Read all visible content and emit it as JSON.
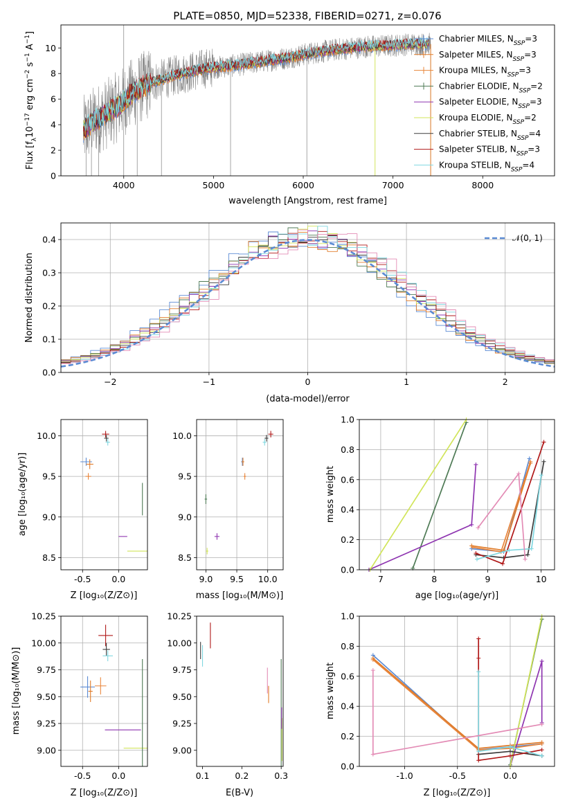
{
  "chart_data": [
    {
      "id": "spectrum",
      "type": "line",
      "title": "PLATE=0850, MJD=52338, FIBERID=0271, z=0.076",
      "xlabel": "wavelength [Angstrom, rest frame]",
      "ylabel": "Flux [fλ10⁻¹⁷ erg cm⁻² s⁻¹ A⁻¹]",
      "xlim": [
        3300,
        8800
      ],
      "ylim": [
        0,
        11.8
      ],
      "xticks": [
        4000,
        5000,
        6000,
        7000,
        8000
      ],
      "yticks": [
        0,
        2,
        4,
        6,
        8,
        10
      ],
      "grid": false,
      "legend_position": "top-right",
      "data_gray": "#808080",
      "continuum": {
        "x": [
          3550,
          3650,
          3800,
          3950,
          4100,
          4300,
          4600,
          4900,
          5200,
          5500,
          5800,
          6100,
          6400,
          6700,
          7000,
          7200,
          7400
        ],
        "y": [
          3.5,
          4.2,
          4.8,
          5.5,
          6.5,
          7.3,
          7.9,
          8.4,
          8.6,
          8.9,
          9.2,
          9.6,
          9.9,
          10.1,
          10.2,
          10.3,
          10.3
        ]
      },
      "series": [
        {
          "name": "Chabrier MILES, N",
          "sub": "SSP",
          "sup": "=3",
          "color": "#5b8bd4",
          "style": "plus"
        },
        {
          "name": "Salpeter MILES, N",
          "sub": "SSP",
          "sup": "=3",
          "color": "#e07b28",
          "style": "plus"
        },
        {
          "name": "Kroupa MILES, N",
          "sub": "SSP",
          "sup": "=3",
          "color": "#e8843a",
          "style": "plus"
        },
        {
          "name": "Chabrier ELODIE, N",
          "sub": "SSP",
          "sup": "=2",
          "color": "#4e7a55",
          "style": "plus"
        },
        {
          "name": "Salpeter ELODIE, N",
          "sub": "SSP",
          "sup": "=3",
          "color": "#8e34b0",
          "style": "line"
        },
        {
          "name": "Kroupa ELODIE, N",
          "sub": "SSP",
          "sup": "=2",
          "color": "#d1e55a",
          "style": "line"
        },
        {
          "name": "Chabrier STELIB, N",
          "sub": "SSP",
          "sup": "=4",
          "color": "#3c3c3c",
          "style": "line"
        },
        {
          "name": "Salpeter STELIB, N",
          "sub": "SSP",
          "sup": "=3",
          "color": "#b01818",
          "style": "line"
        },
        {
          "name": "Kroupa STELIB, N",
          "sub": "SSP",
          "sup": "=4",
          "color": "#7fd7e0",
          "style": "line"
        }
      ]
    },
    {
      "id": "residuals",
      "type": "bar",
      "xlabel": "(data-model)/error",
      "ylabel": "Normed distribution",
      "xlim": [
        -2.5,
        2.5
      ],
      "ylim": [
        0,
        0.45
      ],
      "xticks": [
        -2,
        -1,
        0,
        1,
        2
      ],
      "yticks": [
        0.0,
        0.1,
        0.2,
        0.3,
        0.4
      ],
      "grid": true,
      "legend_position": "top-right",
      "reference_curve": {
        "name": "𝒩(0, 1)",
        "color": "#5b8bd4",
        "mean": 0,
        "sigma": 1
      },
      "bin_width": 0.1
    },
    {
      "id": "age-vs-z",
      "type": "scatter",
      "xlabel": "Z [log₁₀(Z/Z⊙)]",
      "ylabel": "age  [log₁₀(age/yr)]",
      "xlim": [
        -0.8,
        0.4
      ],
      "ylim": [
        8.35,
        10.2
      ],
      "xticks": [
        -0.5,
        0.0
      ],
      "yticks": [
        8.5,
        9.0,
        9.5,
        10.0
      ],
      "grid": true,
      "points": [
        {
          "series": "Chabrier MILES",
          "x": -0.45,
          "y": 9.68,
          "xerr": 0.08,
          "yerr": 0.05
        },
        {
          "series": "Salpeter MILES",
          "x": -0.4,
          "y": 9.65,
          "xerr": 0.05,
          "yerr": 0.06
        },
        {
          "series": "Kroupa MILES",
          "x": -0.42,
          "y": 9.5,
          "xerr": 0.04,
          "yerr": 0.04
        },
        {
          "series": "Salpeter STELIB",
          "x": -0.18,
          "y": 10.02,
          "xerr": 0.05,
          "yerr": 0.04
        },
        {
          "series": "Chabrier STELIB",
          "x": -0.17,
          "y": 9.97,
          "xerr": 0.03,
          "yerr": 0.04
        },
        {
          "series": "Kroupa STELIB",
          "x": -0.15,
          "y": 9.92,
          "xerr": 0.03,
          "yerr": 0.04
        },
        {
          "series": "Salpeter ELODIE",
          "x": 0.06,
          "y": 8.76,
          "xerr": 0.06,
          "yerr": 0.0
        },
        {
          "series": "Kroupa ELODIE",
          "x": 0.32,
          "y": 8.58,
          "xerr": 0.2,
          "yerr": 0.0
        },
        {
          "series": "Chabrier ELODIE",
          "x": 0.33,
          "y": 9.22,
          "xerr": 0.0,
          "yerr": 0.2
        }
      ]
    },
    {
      "id": "age-vs-mass",
      "type": "scatter",
      "xlabel": "mass [log₁₀(M/M⊙)]",
      "xlim": [
        8.85,
        10.25
      ],
      "ylim": [
        8.35,
        10.2
      ],
      "xticks": [
        9.0,
        9.5,
        10.0
      ],
      "yticks": [
        8.5,
        9.0,
        9.5,
        10.0
      ],
      "grid": true,
      "points": [
        {
          "series": "Chabrier MILES",
          "x": 9.59,
          "y": 9.68,
          "xerr": 0.02,
          "yerr": 0.05
        },
        {
          "series": "Salpeter MILES",
          "x": 9.6,
          "y": 9.68,
          "xerr": 0.02,
          "yerr": 0.05
        },
        {
          "series": "Kroupa MILES",
          "x": 9.63,
          "y": 9.5,
          "xerr": 0.02,
          "yerr": 0.04
        },
        {
          "series": "Salpeter STELIB",
          "x": 10.05,
          "y": 10.02,
          "xerr": 0.04,
          "yerr": 0.04
        },
        {
          "series": "Chabrier STELIB",
          "x": 9.98,
          "y": 9.97,
          "xerr": 0.03,
          "yerr": 0.04
        },
        {
          "series": "Kroupa STELIB",
          "x": 9.95,
          "y": 9.92,
          "xerr": 0.03,
          "yerr": 0.04
        },
        {
          "series": "Salpeter ELODIE",
          "x": 9.18,
          "y": 8.76,
          "xerr": 0.04,
          "yerr": 0.04
        },
        {
          "series": "Kroupa ELODIE",
          "x": 9.02,
          "y": 8.58,
          "xerr": 0.02,
          "yerr": 0.04
        },
        {
          "series": "Chabrier ELODIE",
          "x": 9.0,
          "y": 9.22,
          "xerr": 0.02,
          "yerr": 0.06
        }
      ]
    },
    {
      "id": "mass-weight-vs-age",
      "type": "line",
      "xlabel": "age  [log₁₀(age/yr)]",
      "ylabel": "mass weight",
      "xlim": [
        6.6,
        10.25
      ],
      "ylim": [
        0,
        1
      ],
      "xticks": [
        7,
        8,
        9,
        10
      ],
      "yticks": [
        0.0,
        0.2,
        0.4,
        0.6,
        0.8,
        1.0
      ],
      "grid": true,
      "series": [
        {
          "name": "Chabrier MILES",
          "x": [
            8.7,
            9.3,
            9.78
          ],
          "y": [
            0.14,
            0.12,
            0.74
          ]
        },
        {
          "name": "Salpeter MILES",
          "x": [
            8.7,
            9.3,
            9.8
          ],
          "y": [
            0.16,
            0.13,
            0.71
          ]
        },
        {
          "name": "Kroupa MILES",
          "x": [
            8.72,
            9.25,
            9.8
          ],
          "y": [
            0.15,
            0.12,
            0.72
          ]
        },
        {
          "name": "Chabrier ELODIE",
          "x": [
            7.6,
            8.6
          ],
          "y": [
            0.01,
            0.98
          ]
        },
        {
          "name": "Salpeter ELODIE",
          "x": [
            6.78,
            8.7,
            8.78
          ],
          "y": [
            0.0,
            0.3,
            0.7
          ]
        },
        {
          "name": "Kroupa ELODIE",
          "x": [
            6.8,
            8.6
          ],
          "y": [
            0.0,
            1.0
          ]
        },
        {
          "name": "Chabrier STELIB",
          "x": [
            8.78,
            9.3,
            9.75,
            10.05
          ],
          "y": [
            0.1,
            0.08,
            0.1,
            0.72
          ]
        },
        {
          "name": "Salpeter STELIB",
          "x": [
            8.78,
            9.28,
            10.05
          ],
          "y": [
            0.11,
            0.04,
            0.85
          ]
        },
        {
          "name": "Kroupa STELIB",
          "x": [
            8.8,
            9.4,
            9.82,
            10.0
          ],
          "y": [
            0.07,
            0.13,
            0.14,
            0.63
          ]
        },
        {
          "name": "Pink",
          "x": [
            8.82,
            9.58,
            9.7
          ],
          "y": [
            0.28,
            0.64,
            0.07
          ]
        }
      ]
    },
    {
      "id": "mass-vs-z",
      "type": "scatter",
      "xlabel": "Z [log₁₀(Z/Z⊙)]",
      "ylabel": "mass [log₁₀(M/M⊙)]",
      "xlim": [
        -0.8,
        0.4
      ],
      "ylim": [
        8.85,
        10.25
      ],
      "xticks": [
        -0.5,
        0.0
      ],
      "yticks": [
        9.0,
        9.25,
        9.5,
        9.75,
        10.0,
        10.25
      ],
      "grid": true,
      "points": [
        {
          "series": "Chabrier MILES",
          "x": -0.43,
          "y": 9.59,
          "xerr": 0.1,
          "yerr": 0.1
        },
        {
          "series": "Salpeter MILES",
          "x": -0.39,
          "y": 9.55,
          "xerr": 0.03,
          "yerr": 0.1
        },
        {
          "series": "Kroupa MILES",
          "x": -0.25,
          "y": 9.6,
          "xerr": 0.08,
          "yerr": 0.08
        },
        {
          "series": "Salpeter STELIB",
          "x": -0.18,
          "y": 10.07,
          "xerr": 0.1,
          "yerr": 0.1
        },
        {
          "series": "Chabrier STELIB",
          "x": -0.17,
          "y": 9.94,
          "xerr": 0.05,
          "yerr": 0.06
        },
        {
          "series": "Kroupa STELIB",
          "x": -0.15,
          "y": 9.88,
          "xerr": 0.07,
          "yerr": 0.05
        },
        {
          "series": "Salpeter ELODIE",
          "x": 0.06,
          "y": 9.19,
          "xerr": 0.25,
          "yerr": 0.0
        },
        {
          "series": "Kroupa ELODIE",
          "x": 0.32,
          "y": 9.02,
          "xerr": 0.25,
          "yerr": 0.0
        },
        {
          "series": "Chabrier ELODIE",
          "x": 0.33,
          "y": 9.35,
          "xerr": 0.0,
          "yerr": 0.5
        }
      ]
    },
    {
      "id": "mass-vs-ebv",
      "type": "scatter",
      "xlabel": "E(B-V)",
      "xlim": [
        0.085,
        0.305
      ],
      "ylim": [
        8.85,
        10.25
      ],
      "xticks": [
        0.1,
        0.2,
        0.3
      ],
      "yticks": [
        9.0,
        9.25,
        9.5,
        9.75,
        10.0,
        10.25
      ],
      "grid": false,
      "points": [
        {
          "series": "Chabrier STELIB",
          "x": 0.095,
          "y": 9.93,
          "xerr": 0,
          "yerr": 0.08
        },
        {
          "series": "Kroupa STELIB",
          "x": 0.1,
          "y": 9.88,
          "xerr": 0,
          "yerr": 0.1
        },
        {
          "series": "Salpeter STELIB",
          "x": 0.12,
          "y": 10.07,
          "xerr": 0,
          "yerr": 0.12
        },
        {
          "series": "Pink",
          "x": 0.265,
          "y": 9.65,
          "xerr": 0,
          "yerr": 0.12
        },
        {
          "series": "Salpeter MILES",
          "x": 0.268,
          "y": 9.52,
          "xerr": 0,
          "yerr": 0.08
        },
        {
          "series": "Chabrier ELODIE",
          "x": 0.3,
          "y": 9.35,
          "xerr": 0,
          "yerr": 0.5
        },
        {
          "series": "Kroupa ELODIE",
          "x": 0.302,
          "y": 9.1,
          "xerr": 0,
          "yerr": 0.2
        },
        {
          "series": "Salpeter ELODIE",
          "x": 0.301,
          "y": 9.3,
          "xerr": 0,
          "yerr": 0.1
        }
      ]
    },
    {
      "id": "mass-weight-vs-z",
      "type": "line",
      "xlabel": "Z [log₁₀(Z/Z⊙)]",
      "ylabel": "mass weight",
      "xlim": [
        -1.43,
        0.42
      ],
      "ylim": [
        0,
        1
      ],
      "xticks": [
        -1.0,
        -0.5,
        0.0
      ],
      "yticks": [
        0.0,
        0.2,
        0.4,
        0.6,
        0.8,
        1.0
      ],
      "grid": true,
      "series": [
        {
          "name": "Chabrier MILES",
          "x": [
            -1.3,
            -0.3,
            0.0,
            0.3
          ],
          "y": [
            0.74,
            0.11,
            0.13,
            0.15
          ]
        },
        {
          "name": "Salpeter MILES",
          "x": [
            -1.3,
            -0.3,
            0.0,
            0.3
          ],
          "y": [
            0.72,
            0.12,
            0.14,
            0.16
          ]
        },
        {
          "name": "Kroupa MILES",
          "x": [
            -1.3,
            -0.3,
            0.0,
            0.3
          ],
          "y": [
            0.71,
            0.11,
            0.12,
            0.15
          ]
        },
        {
          "name": "Chabrier ELODIE",
          "x": [
            0.0,
            0.3
          ],
          "y": [
            0.01,
            0.98
          ]
        },
        {
          "name": "Salpeter ELODIE",
          "x": [
            0.0,
            0.3,
            0.3
          ],
          "y": [
            0.0,
            0.7,
            0.29
          ]
        },
        {
          "name": "Kroupa ELODIE",
          "x": [
            0.0,
            0.3
          ],
          "y": [
            0.0,
            1.0
          ]
        },
        {
          "name": "Chabrier STELIB",
          "x": [
            -0.3,
            0.0,
            0.3
          ],
          "y": [
            0.08,
            0.1,
            0.07
          ]
        },
        {
          "name": "Salpeter STELIB",
          "x": [
            -0.3,
            -0.3,
            -0.3,
            0.0,
            0.3
          ],
          "y": [
            0.85,
            0.72,
            0.04,
            0.07,
            0.11
          ]
        },
        {
          "name": "Kroupa STELIB",
          "x": [
            -0.3,
            -0.3,
            0.0,
            0.3
          ],
          "y": [
            0.63,
            0.1,
            0.13,
            0.07
          ]
        },
        {
          "name": "Pink",
          "x": [
            -1.3,
            -1.3,
            0.3
          ],
          "y": [
            0.64,
            0.08,
            0.28
          ]
        }
      ]
    }
  ],
  "colors": {
    "Chabrier MILES": "#5b8bd4",
    "Salpeter MILES": "#e07b28",
    "Kroupa MILES": "#e8843a",
    "Chabrier ELODIE": "#4e7a55",
    "Salpeter ELODIE": "#8e34b0",
    "Kroupa ELODIE": "#d1e55a",
    "Chabrier STELIB": "#3c3c3c",
    "Salpeter STELIB": "#b01818",
    "Kroupa STELIB": "#7fd7e0",
    "Pink": "#e38bb5"
  }
}
